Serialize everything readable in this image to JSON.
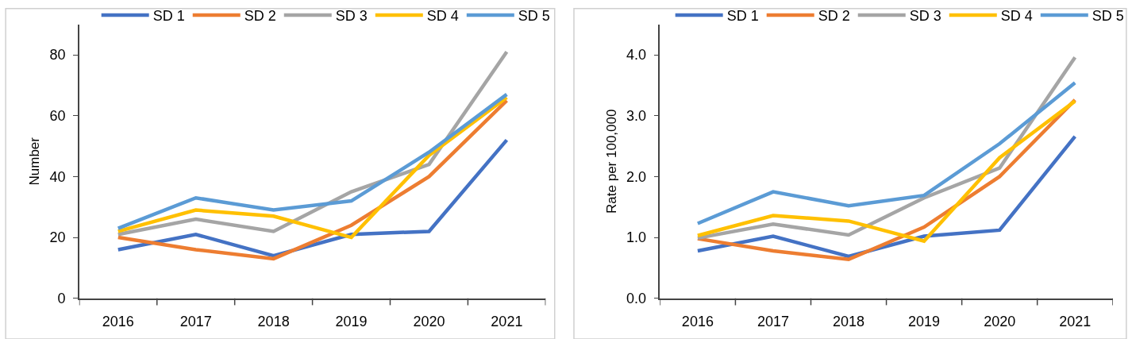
{
  "chart_data": [
    {
      "type": "line",
      "ylabel": "Number",
      "categories": [
        "2016",
        "2017",
        "2018",
        "2019",
        "2020",
        "2021"
      ],
      "ylim": [
        0,
        90
      ],
      "yticks": [
        0,
        20,
        40,
        60,
        80
      ],
      "legend": "top",
      "marker": "none",
      "line_style": "solid",
      "series": [
        {
          "name": "SD 1",
          "color": "#4472c4",
          "values": [
            16,
            21,
            14,
            21,
            22,
            52
          ]
        },
        {
          "name": "SD 2",
          "color": "#ed7d31",
          "values": [
            20,
            16,
            13,
            24,
            40,
            65
          ]
        },
        {
          "name": "SD 3",
          "color": "#a5a5a5",
          "values": [
            21,
            26,
            22,
            35,
            44,
            81
          ]
        },
        {
          "name": "SD 4",
          "color": "#ffc000",
          "values": [
            22,
            29,
            27,
            20,
            47,
            66
          ]
        },
        {
          "name": "SD 5",
          "color": "#5b9bd5",
          "values": [
            23,
            33,
            29,
            32,
            48,
            67
          ]
        }
      ]
    },
    {
      "type": "line",
      "ylabel": "Rate per 100,000",
      "categories": [
        "2016",
        "2017",
        "2018",
        "2019",
        "2020",
        "2021"
      ],
      "ylim": [
        0,
        4.5
      ],
      "yticks": [
        {
          "value": 0,
          "label": "0.0"
        },
        {
          "value": 1,
          "label": "1.0"
        },
        {
          "value": 2,
          "label": "2.0"
        },
        {
          "value": 3,
          "label": "3.0"
        },
        {
          "value": 4,
          "label": "4.0"
        }
      ],
      "legend": "top",
      "marker": "none",
      "line_style": "solid",
      "series": [
        {
          "name": "SD 1",
          "color": "#4472c4",
          "values": [
            0.78,
            1.02,
            0.69,
            1.02,
            1.12,
            2.66
          ]
        },
        {
          "name": "SD 2",
          "color": "#ed7d31",
          "values": [
            0.98,
            0.78,
            0.64,
            1.17,
            2.0,
            3.26
          ]
        },
        {
          "name": "SD 3",
          "color": "#a5a5a5",
          "values": [
            0.99,
            1.22,
            1.04,
            1.65,
            2.14,
            3.96
          ]
        },
        {
          "name": "SD 4",
          "color": "#ffc000",
          "values": [
            1.03,
            1.36,
            1.27,
            0.94,
            2.31,
            3.24
          ]
        },
        {
          "name": "SD 5",
          "color": "#5b9bd5",
          "values": [
            1.23,
            1.75,
            1.52,
            1.69,
            2.54,
            3.54
          ]
        }
      ]
    }
  ]
}
